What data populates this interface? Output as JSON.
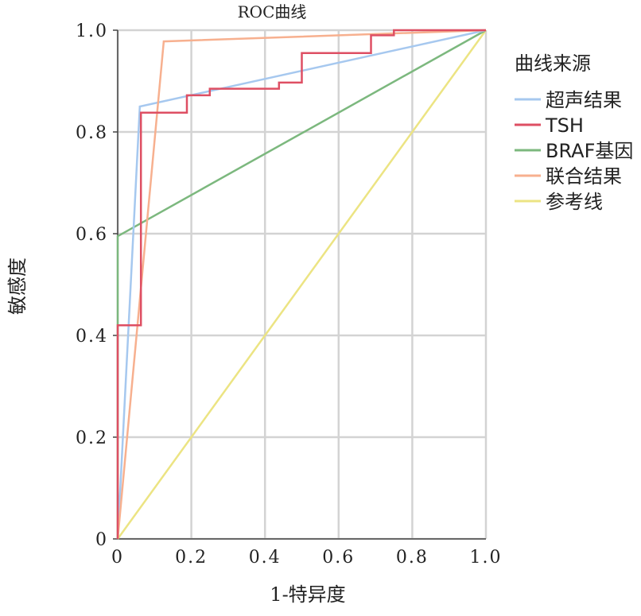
{
  "chart_data": {
    "type": "line",
    "title": "ROC曲线",
    "xlabel": "1-特异度",
    "ylabel": "敏感度",
    "xlim": [
      0,
      1
    ],
    "ylim": [
      0,
      1
    ],
    "xticks": [
      "0",
      "0.2",
      "0.4",
      "0.6",
      "0.8",
      "1.0"
    ],
    "yticks": [
      "0",
      "0.2",
      "0.4",
      "0.6",
      "0.8",
      "1.0"
    ],
    "grid": true,
    "legend": {
      "title": "曲线来源",
      "placement": "right"
    },
    "series": [
      {
        "name": "超声结果",
        "color": "#a6c8ef",
        "points": [
          [
            0,
            0
          ],
          [
            0.06,
            0.85
          ],
          [
            1.0,
            1.0
          ]
        ]
      },
      {
        "name": "TSH",
        "color": "#de4f63",
        "points": [
          [
            0,
            0
          ],
          [
            0,
            0.42
          ],
          [
            0.063,
            0.42
          ],
          [
            0.063,
            0.838
          ],
          [
            0.188,
            0.838
          ],
          [
            0.188,
            0.872
          ],
          [
            0.25,
            0.872
          ],
          [
            0.25,
            0.885
          ],
          [
            0.438,
            0.885
          ],
          [
            0.438,
            0.897
          ],
          [
            0.5,
            0.897
          ],
          [
            0.5,
            0.955
          ],
          [
            0.688,
            0.955
          ],
          [
            0.688,
            0.99
          ],
          [
            0.75,
            0.99
          ],
          [
            0.75,
            1.0
          ],
          [
            1.0,
            1.0
          ]
        ]
      },
      {
        "name": "BRAF基因",
        "color": "#7cb87e",
        "points": [
          [
            0,
            0
          ],
          [
            0,
            0.595
          ],
          [
            1.0,
            1.0
          ]
        ]
      },
      {
        "name": "联合结果",
        "color": "#f7b08f",
        "points": [
          [
            0,
            0
          ],
          [
            0.125,
            0.978
          ],
          [
            1.0,
            1.0
          ]
        ]
      },
      {
        "name": "参考线",
        "color": "#ece483",
        "points": [
          [
            0,
            0
          ],
          [
            1.0,
            1.0
          ]
        ]
      }
    ]
  }
}
